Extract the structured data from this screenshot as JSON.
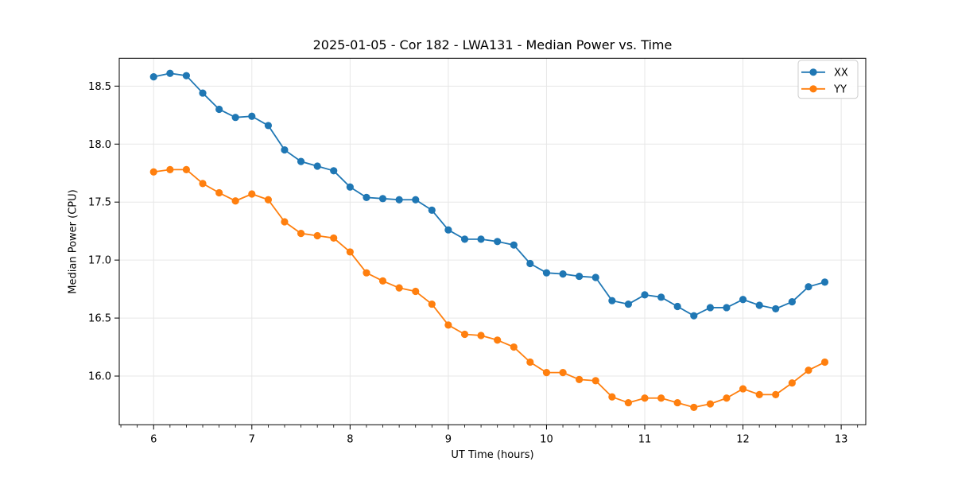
{
  "page": {
    "background_color": "#ffffff"
  },
  "chart_data": {
    "type": "line",
    "title": "2025-01-05 - Cor 182 - LWA131 - Median Power vs. Time",
    "xlabel": "UT Time (hours)",
    "ylabel": "Median Power (CPU)",
    "grid": true,
    "legend_position": "upper right",
    "xlim": [
      5.65,
      13.25
    ],
    "ylim": [
      15.58,
      18.74
    ],
    "x_ticks": [
      6,
      7,
      8,
      9,
      10,
      11,
      12,
      13
    ],
    "x_tick_labels": [
      "6",
      "7",
      "8",
      "9",
      "10",
      "11",
      "12",
      "13"
    ],
    "x_minor_tick_step_hours": 0.1667,
    "y_ticks": [
      16.0,
      16.5,
      17.0,
      17.5,
      18.0,
      18.5
    ],
    "y_tick_labels": [
      "16.0",
      "16.5",
      "17.0",
      "17.5",
      "18.0",
      "18.5"
    ],
    "x": [
      6.0,
      6.167,
      6.333,
      6.5,
      6.667,
      6.833,
      7.0,
      7.167,
      7.333,
      7.5,
      7.667,
      7.833,
      8.0,
      8.167,
      8.333,
      8.5,
      8.667,
      8.833,
      9.0,
      9.167,
      9.333,
      9.5,
      9.667,
      9.833,
      10.0,
      10.167,
      10.333,
      10.5,
      10.667,
      10.833,
      11.0,
      11.167,
      11.333,
      11.5,
      11.667,
      11.833,
      12.0,
      12.167,
      12.333,
      12.5,
      12.667,
      12.833
    ],
    "series": [
      {
        "name": "XX",
        "color": "#1f77b4",
        "values": [
          18.58,
          18.61,
          18.59,
          18.44,
          18.3,
          18.23,
          18.24,
          18.16,
          17.95,
          17.85,
          17.81,
          17.77,
          17.63,
          17.54,
          17.53,
          17.52,
          17.52,
          17.43,
          17.26,
          17.18,
          17.18,
          17.16,
          17.13,
          16.97,
          16.89,
          16.88,
          16.86,
          16.85,
          16.65,
          16.62,
          16.7,
          16.68,
          16.6,
          16.52,
          16.59,
          16.59,
          16.66,
          16.61,
          16.58,
          16.64,
          16.77,
          16.81
        ]
      },
      {
        "name": "YY",
        "color": "#ff7f0e",
        "values": [
          17.76,
          17.78,
          17.78,
          17.66,
          17.58,
          17.51,
          17.57,
          17.52,
          17.33,
          17.23,
          17.21,
          17.19,
          17.07,
          16.89,
          16.82,
          16.76,
          16.73,
          16.62,
          16.44,
          16.36,
          16.35,
          16.31,
          16.25,
          16.12,
          16.03,
          16.03,
          15.97,
          15.96,
          15.82,
          15.77,
          15.81,
          15.81,
          15.77,
          15.73,
          15.76,
          15.81,
          15.89,
          15.84,
          15.84,
          15.94,
          16.05,
          16.12
        ]
      }
    ],
    "style": {
      "grid_color": "#e7e7e7",
      "spine_color": "#000000",
      "tick_color": "#000000",
      "text_color": "#000000",
      "legend_border_color": "#cccccc",
      "legend_background": "#ffffff"
    }
  }
}
